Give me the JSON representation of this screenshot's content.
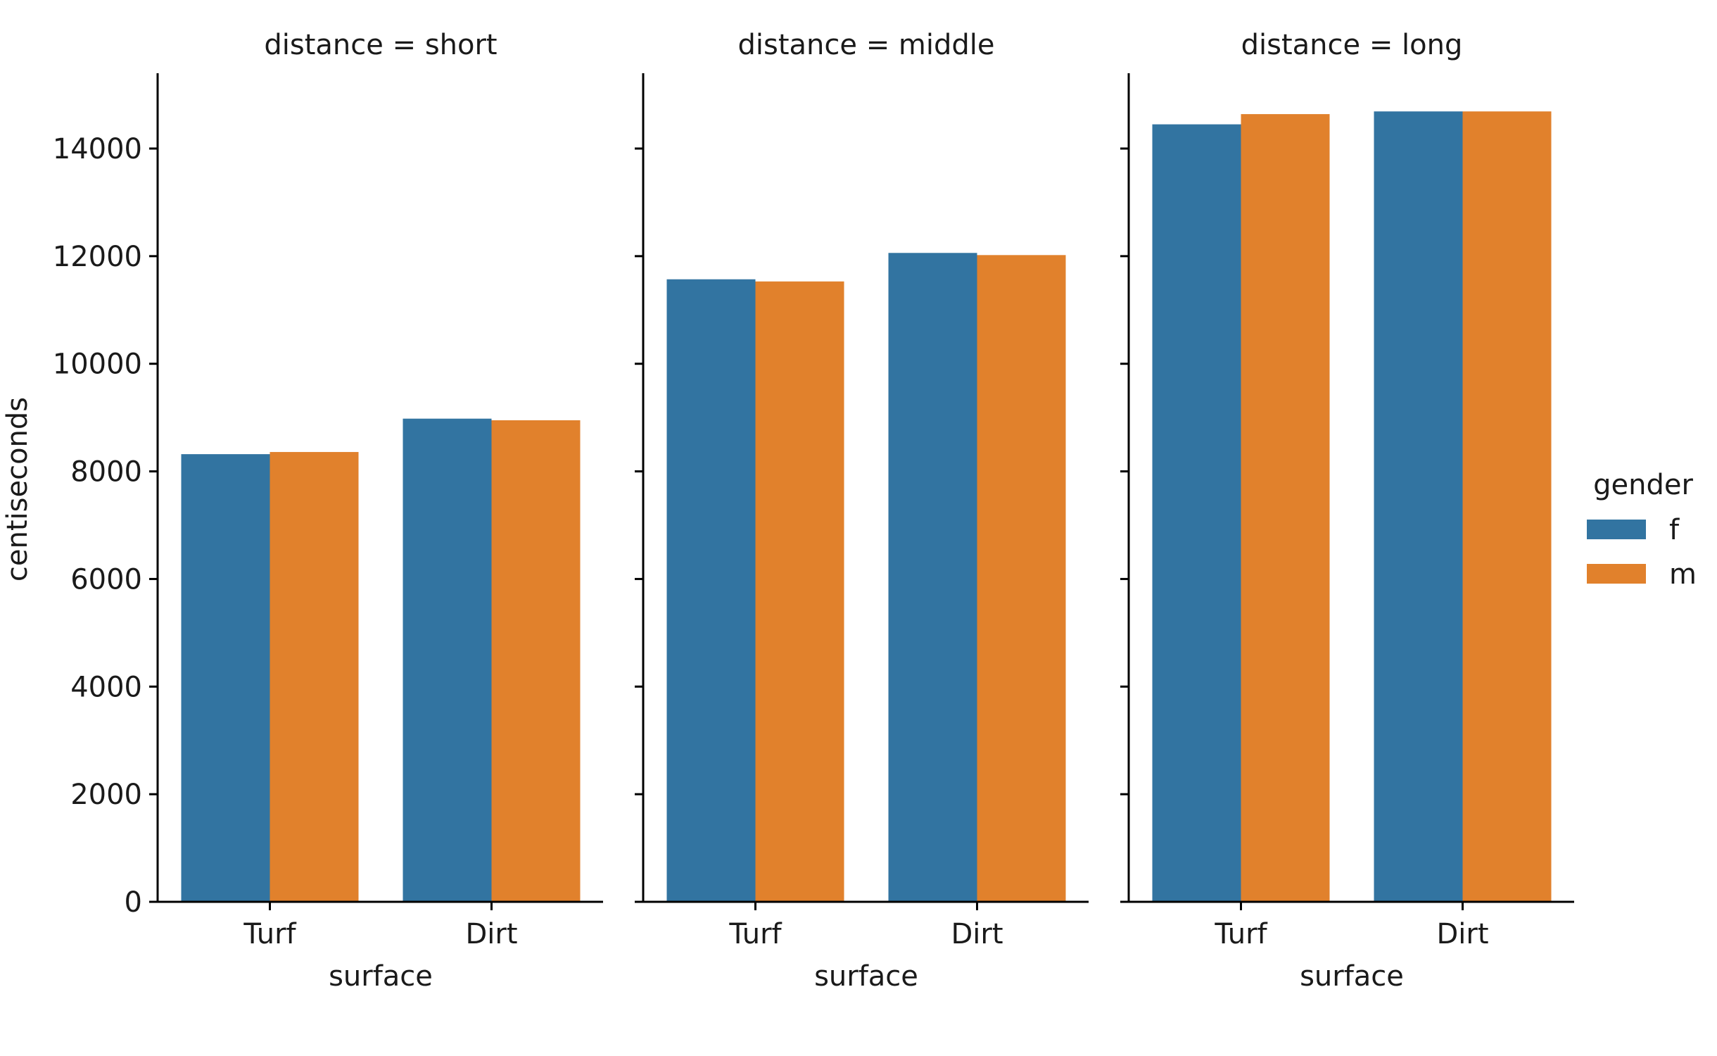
{
  "chart_data": {
    "type": "bar",
    "ylabel": "centiseconds",
    "ylim": [
      0,
      15400
    ],
    "yticks": [
      0,
      2000,
      4000,
      6000,
      8000,
      10000,
      12000,
      14000
    ],
    "xlabel": "surface",
    "categories": [
      "Turf",
      "Dirt"
    ],
    "grid": false,
    "legend": {
      "title": "gender",
      "placement": "right",
      "entries": [
        "f",
        "m"
      ]
    },
    "colors": {
      "f": "#3274a1",
      "m": "#e1812c"
    },
    "facets": [
      {
        "title": "distance = short",
        "series": [
          {
            "name": "f",
            "values": [
              8320,
              8980
            ]
          },
          {
            "name": "m",
            "values": [
              8360,
              8950
            ]
          }
        ]
      },
      {
        "title": "distance = middle",
        "series": [
          {
            "name": "f",
            "values": [
              11570,
              12060
            ]
          },
          {
            "name": "m",
            "values": [
              11530,
              12020
            ]
          }
        ]
      },
      {
        "title": "distance = long",
        "series": [
          {
            "name": "f",
            "values": [
              14450,
              14690
            ]
          },
          {
            "name": "m",
            "values": [
              14640,
              14690
            ]
          }
        ]
      }
    ]
  }
}
